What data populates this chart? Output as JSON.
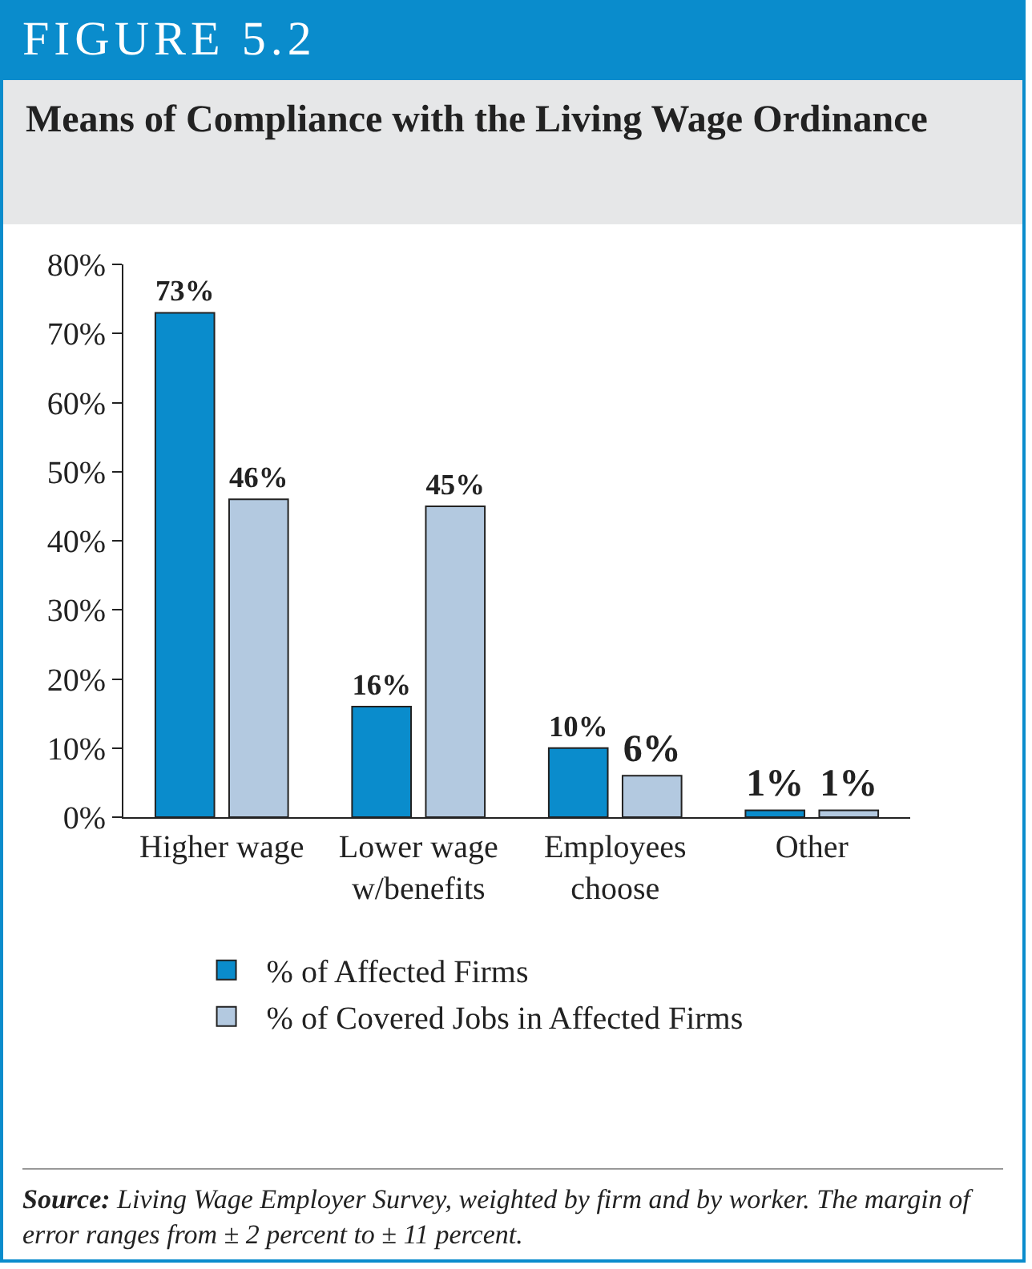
{
  "chart_data": {
    "type": "bar",
    "title": "FIGURE 5.2",
    "subtitle": "Means of Compliance with the Living Wage Ordinance",
    "categories": [
      "Higher wage",
      "Lower wage w/benefits",
      "Employees choose",
      "Other"
    ],
    "series": [
      {
        "name": "% of Affected Firms",
        "color": "#0a8ccc",
        "values": [
          73,
          16,
          10,
          1
        ],
        "value_labels": [
          "73%",
          "16%",
          "10%",
          "1%"
        ]
      },
      {
        "name": "% of Covered Jobs in Affected Firms",
        "color": "#b3c9e0",
        "values": [
          46,
          45,
          6,
          1
        ],
        "value_labels": [
          "46%",
          "45%",
          "6%",
          "1%"
        ]
      }
    ],
    "ylim": [
      0,
      80
    ],
    "yticks": [
      {
        "value": 0,
        "label": "0%"
      },
      {
        "value": 10,
        "label": "10%"
      },
      {
        "value": 20,
        "label": "20%"
      },
      {
        "value": 30,
        "label": "30%"
      },
      {
        "value": 40,
        "label": "40%"
      },
      {
        "value": 50,
        "label": "50%"
      },
      {
        "value": 60,
        "label": "60%"
      },
      {
        "value": 70,
        "label": "70%"
      },
      {
        "value": 80,
        "label": "80%"
      }
    ],
    "grid": false,
    "legend": "bottom",
    "annotations": [
      "Source: Living Wage Employer Survey, weighted by firm and by worker. The margin of error ranges from ± 2 percent to ± 11 percent."
    ]
  }
}
